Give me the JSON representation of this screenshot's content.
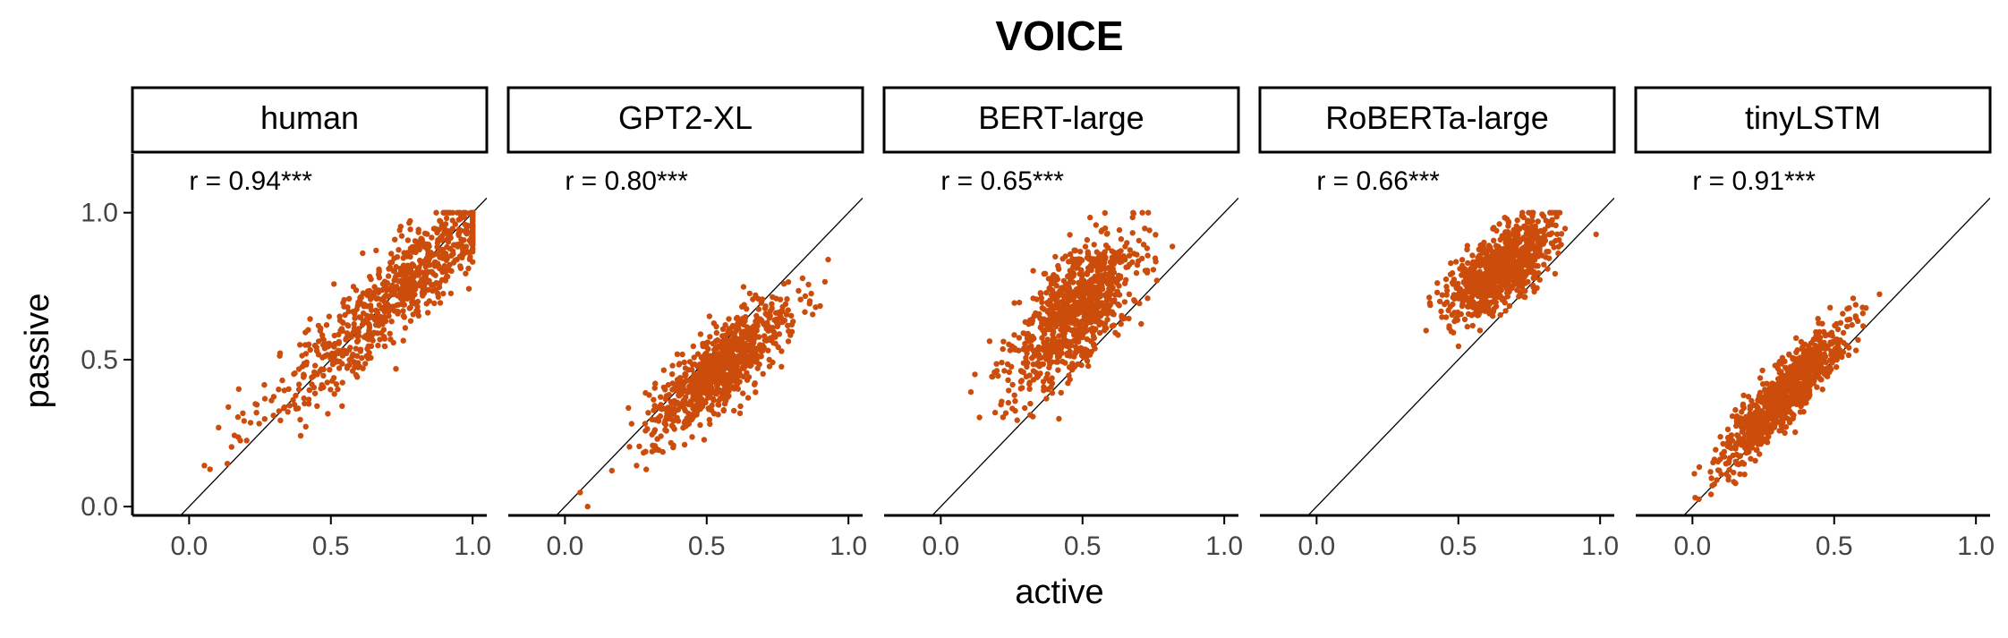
{
  "chart_data": {
    "type": "scatter",
    "title": "VOICE",
    "xlabel": "active",
    "ylabel": "passive",
    "xlim": [
      -0.2,
      1.05
    ],
    "ylim": [
      -0.03,
      1.2
    ],
    "x_ticks": [
      "0.0",
      "0.5",
      "1.0"
    ],
    "y_ticks": [
      "0.0",
      "0.5",
      "1.0"
    ],
    "reference_line": "y = x",
    "point_color": "#cc4c0c",
    "grid": false,
    "legend": "none",
    "point_count_per_panel": 900,
    "panels": [
      {
        "name": "human",
        "annotation": "r = 0.94***",
        "x_mean": 0.78,
        "x_sd": 0.25,
        "y_mean": 0.77,
        "y_sd": 0.23,
        "r": 0.94
      },
      {
        "name": "GPT2-XL",
        "annotation": "r = 0.80***",
        "x_mean": 0.55,
        "x_sd": 0.12,
        "y_mean": 0.47,
        "y_sd": 0.11,
        "r": 0.8
      },
      {
        "name": "BERT-large",
        "annotation": "r = 0.65***",
        "x_mean": 0.47,
        "x_sd": 0.11,
        "y_mean": 0.66,
        "y_sd": 0.13,
        "r": 0.65
      },
      {
        "name": "RoBERTa-large",
        "annotation": "r = 0.66***",
        "x_mean": 0.65,
        "x_sd": 0.09,
        "y_mean": 0.81,
        "y_sd": 0.08,
        "r": 0.66
      },
      {
        "name": "tinyLSTM",
        "annotation": "r = 0.91***",
        "x_mean": 0.32,
        "x_sd": 0.11,
        "y_mean": 0.38,
        "y_sd": 0.12,
        "r": 0.91
      }
    ]
  }
}
